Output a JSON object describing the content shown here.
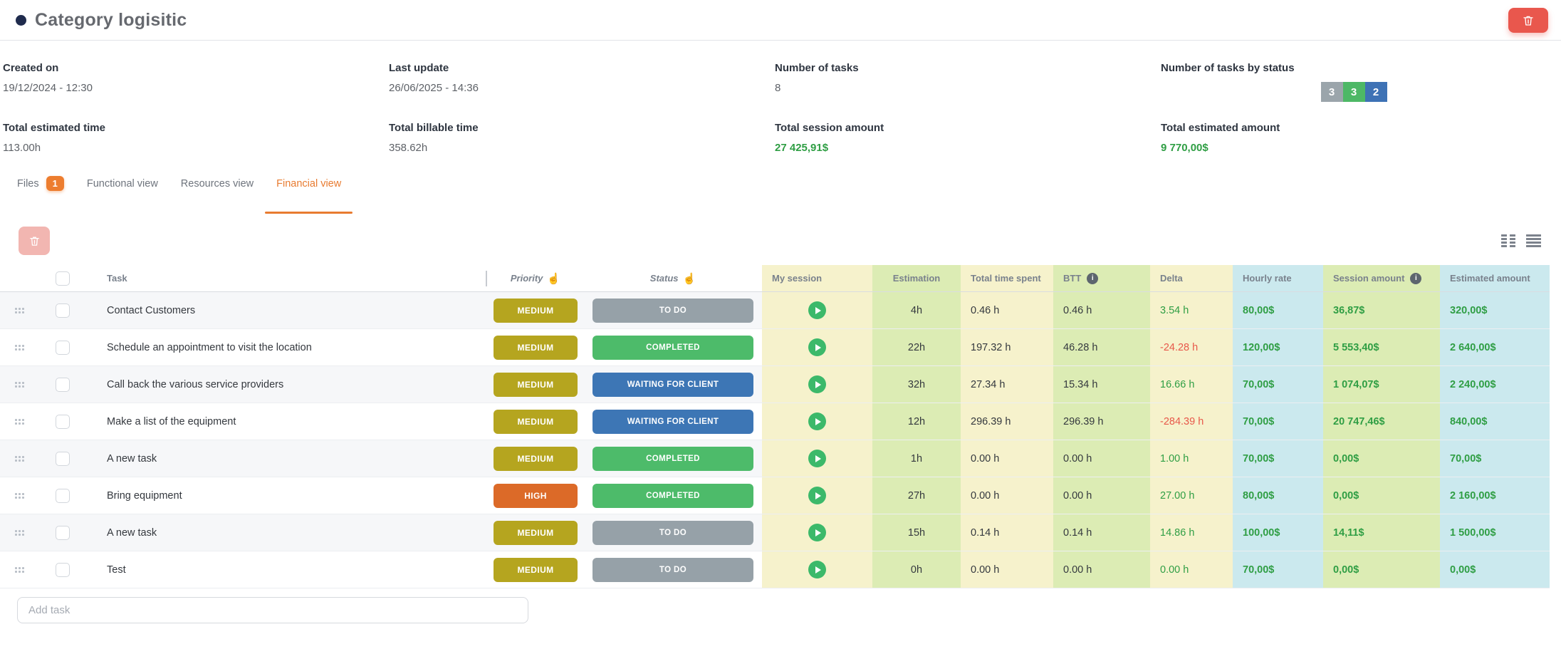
{
  "header": {
    "title": "Category logisitic"
  },
  "stats": {
    "created_on": {
      "label": "Created on",
      "value": "19/12/2024 - 12:30"
    },
    "last_update": {
      "label": "Last update",
      "value": "26/06/2025 - 14:36"
    },
    "number_of_tasks": {
      "label": "Number of tasks",
      "value": "8"
    },
    "tasks_by_status": {
      "label": "Number of tasks by status",
      "badges": [
        {
          "count": "3",
          "status": "to-do",
          "color": "#9ba5ab"
        },
        {
          "count": "3",
          "status": "completed",
          "color": "#4db866"
        },
        {
          "count": "2",
          "status": "waiting-for-client",
          "color": "#3e72b5"
        }
      ]
    },
    "total_estimated_time": {
      "label": "Total estimated time",
      "value": "113.00h"
    },
    "total_billable_time": {
      "label": "Total billable time",
      "value": "358.62h"
    },
    "total_session_amount": {
      "label": "Total session amount",
      "value": "27 425,91$"
    },
    "total_estimated_amount": {
      "label": "Total estimated amount",
      "value": "9 770,00$"
    }
  },
  "tabs": [
    {
      "label": "Files",
      "badge": "1",
      "active": false
    },
    {
      "label": "Functional view",
      "active": false
    },
    {
      "label": "Resources view",
      "active": false
    },
    {
      "label": "Financial view",
      "active": true
    }
  ],
  "table": {
    "headers": {
      "task": "Task",
      "priority": "Priority",
      "status": "Status",
      "sort_icon": "☝",
      "info_icon": "i",
      "my_session": "My session",
      "estimation": "Estimation",
      "total_time_spent": "Total time spent",
      "btt": "BTT",
      "delta": "Delta",
      "hourly_rate": "Hourly rate",
      "session_amount": "Session amount",
      "estimated_amount": "Estimated amount"
    },
    "rows": [
      {
        "task": "Contact Customers",
        "priority": "MEDIUM",
        "status": "TO DO",
        "estimation": "4h",
        "total_time_spent": "0.46 h",
        "btt": "0.46 h",
        "delta": "3.54 h",
        "delta_negative": false,
        "hourly_rate": "80,00$",
        "session_amount": "36,87$",
        "estimated_amount": "320,00$"
      },
      {
        "task": "Schedule an appointment to visit the location",
        "priority": "MEDIUM",
        "status": "COMPLETED",
        "estimation": "22h",
        "total_time_spent": "197.32 h",
        "btt": "46.28 h",
        "delta": "-24.28 h",
        "delta_negative": true,
        "hourly_rate": "120,00$",
        "session_amount": "5 553,40$",
        "estimated_amount": "2 640,00$"
      },
      {
        "task": "Call back the various service providers",
        "priority": "MEDIUM",
        "status": "WAITING FOR CLIENT",
        "estimation": "32h",
        "total_time_spent": "27.34 h",
        "btt": "15.34 h",
        "delta": "16.66 h",
        "delta_negative": false,
        "hourly_rate": "70,00$",
        "session_amount": "1 074,07$",
        "estimated_amount": "2 240,00$"
      },
      {
        "task": "Make a list of the equipment",
        "priority": "MEDIUM",
        "status": "WAITING FOR CLIENT",
        "estimation": "12h",
        "total_time_spent": "296.39 h",
        "btt": "296.39 h",
        "delta": "-284.39 h",
        "delta_negative": true,
        "hourly_rate": "70,00$",
        "session_amount": "20 747,46$",
        "estimated_amount": "840,00$"
      },
      {
        "task": "A new task",
        "priority": "MEDIUM",
        "status": "COMPLETED",
        "estimation": "1h",
        "total_time_spent": "0.00 h",
        "btt": "0.00 h",
        "delta": "1.00 h",
        "delta_negative": false,
        "hourly_rate": "70,00$",
        "session_amount": "0,00$",
        "estimated_amount": "70,00$"
      },
      {
        "task": "Bring equipment",
        "priority": "HIGH",
        "status": "COMPLETED",
        "estimation": "27h",
        "total_time_spent": "0.00 h",
        "btt": "0.00 h",
        "delta": "27.00 h",
        "delta_negative": false,
        "hourly_rate": "80,00$",
        "session_amount": "0,00$",
        "estimated_amount": "2 160,00$"
      },
      {
        "task": "A new task",
        "priority": "MEDIUM",
        "status": "TO DO",
        "estimation": "15h",
        "total_time_spent": "0.14 h",
        "btt": "0.14 h",
        "delta": "14.86 h",
        "delta_negative": false,
        "hourly_rate": "100,00$",
        "session_amount": "14,11$",
        "estimated_amount": "1 500,00$"
      },
      {
        "task": "Test",
        "priority": "MEDIUM",
        "status": "TO DO",
        "estimation": "0h",
        "total_time_spent": "0.00 h",
        "btt": "0.00 h",
        "delta": "0.00 h",
        "delta_negative": false,
        "hourly_rate": "70,00$",
        "session_amount": "0,00$",
        "estimated_amount": "0,00$"
      }
    ],
    "add_task_placeholder": "Add task"
  },
  "colors": {
    "accent_orange": "#e87b30",
    "danger_red": "#e9574d",
    "money_green": "#2f9e44",
    "delta_negative_red": "#e8584a",
    "column_yellow": "#f6f2cc",
    "column_green": "#dcecb4",
    "column_blue": "#cbe9ee",
    "priority": {
      "MEDIUM": "#b5a51f",
      "HIGH": "#dc6a28"
    },
    "status": {
      "TO DO": "#96a1a8",
      "COMPLETED": "#4dbb6a",
      "WAITING FOR CLIENT": "#3d76b5"
    }
  }
}
